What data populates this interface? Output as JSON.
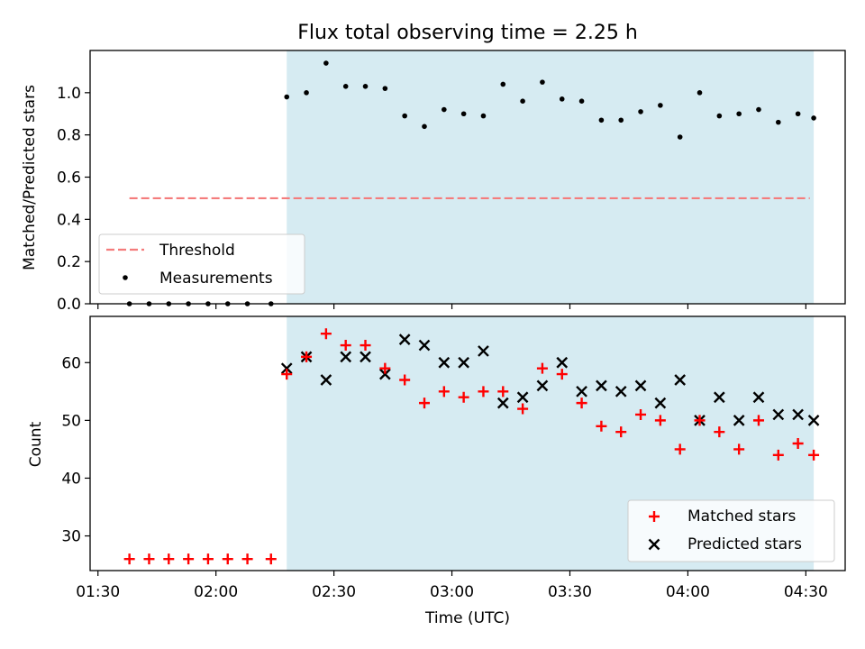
{
  "title": "Flux total observing time = 2.25 h",
  "colors": {
    "shade": "#add8e6",
    "threshold": "#f47c7c",
    "measurement": "#000000",
    "matched": "#ff0000",
    "predicted": "#000000"
  },
  "chart_data": [
    {
      "type": "scatter",
      "ylabel": "Matched/Predicted stars",
      "ylim": [
        0,
        1.2
      ],
      "yticks": [
        0.0,
        0.2,
        0.4,
        0.6,
        0.8,
        1.0
      ],
      "ytick_labels": [
        "0.0",
        "0.2",
        "0.4",
        "0.6",
        "0.8",
        "1.0"
      ],
      "xlim": [
        "01:28",
        "04:40"
      ],
      "shaded_span": [
        "02:18",
        "04:32"
      ],
      "legend": {
        "position": "lower-left",
        "entries": [
          "Threshold",
          "Measurements"
        ]
      },
      "threshold": {
        "name": "Threshold",
        "value": 0.5,
        "x_range": [
          "01:38",
          "04:31"
        ]
      },
      "series": [
        {
          "name": "Measurements",
          "marker": "dot",
          "points": [
            [
              "01:38",
              0
            ],
            [
              "01:43",
              0
            ],
            [
              "01:48",
              0
            ],
            [
              "01:53",
              0
            ],
            [
              "01:58",
              0
            ],
            [
              "02:03",
              0
            ],
            [
              "02:08",
              0
            ],
            [
              "02:14",
              0
            ],
            [
              "02:18",
              0.98
            ],
            [
              "02:23",
              1.0
            ],
            [
              "02:28",
              1.14
            ],
            [
              "02:33",
              1.03
            ],
            [
              "02:38",
              1.03
            ],
            [
              "02:43",
              1.02
            ],
            [
              "02:48",
              0.89
            ],
            [
              "02:53",
              0.84
            ],
            [
              "02:58",
              0.92
            ],
            [
              "03:03",
              0.9
            ],
            [
              "03:08",
              0.89
            ],
            [
              "03:13",
              1.04
            ],
            [
              "03:18",
              0.96
            ],
            [
              "03:23",
              1.05
            ],
            [
              "03:28",
              0.97
            ],
            [
              "03:33",
              0.96
            ],
            [
              "03:38",
              0.87
            ],
            [
              "03:43",
              0.87
            ],
            [
              "03:48",
              0.91
            ],
            [
              "03:53",
              0.94
            ],
            [
              "03:58",
              0.79
            ],
            [
              "04:03",
              1.0
            ],
            [
              "04:08",
              0.89
            ],
            [
              "04:13",
              0.9
            ],
            [
              "04:18",
              0.92
            ],
            [
              "04:23",
              0.86
            ],
            [
              "04:28",
              0.9
            ],
            [
              "04:32",
              0.88
            ]
          ]
        }
      ]
    },
    {
      "type": "scatter",
      "xlabel": "Time (UTC)",
      "ylabel": "Count",
      "ylim": [
        24,
        68
      ],
      "yticks": [
        30,
        40,
        50,
        60
      ],
      "ytick_labels": [
        "30",
        "40",
        "50",
        "60"
      ],
      "xlim": [
        "01:28",
        "04:40"
      ],
      "xticks": [
        "01:30",
        "02:00",
        "02:30",
        "03:00",
        "03:30",
        "04:00",
        "04:30"
      ],
      "xtick_labels": [
        "01:30",
        "02:00",
        "02:30",
        "03:00",
        "03:30",
        "04:00",
        "04:30"
      ],
      "shaded_span": [
        "02:18",
        "04:32"
      ],
      "legend": {
        "position": "lower-right",
        "entries": [
          "Matched stars",
          "Predicted stars"
        ]
      },
      "series": [
        {
          "name": "Matched stars",
          "marker": "plus",
          "points": [
            [
              "01:38",
              26
            ],
            [
              "01:43",
              26
            ],
            [
              "01:48",
              26
            ],
            [
              "01:53",
              26
            ],
            [
              "01:58",
              26
            ],
            [
              "02:03",
              26
            ],
            [
              "02:08",
              26
            ],
            [
              "02:14",
              26
            ],
            [
              "02:18",
              58
            ],
            [
              "02:23",
              61
            ],
            [
              "02:28",
              65
            ],
            [
              "02:33",
              63
            ],
            [
              "02:38",
              63
            ],
            [
              "02:43",
              59
            ],
            [
              "02:48",
              57
            ],
            [
              "02:53",
              53
            ],
            [
              "02:58",
              55
            ],
            [
              "03:03",
              54
            ],
            [
              "03:08",
              55
            ],
            [
              "03:13",
              55
            ],
            [
              "03:18",
              52
            ],
            [
              "03:23",
              59
            ],
            [
              "03:28",
              58
            ],
            [
              "03:33",
              53
            ],
            [
              "03:38",
              49
            ],
            [
              "03:43",
              48
            ],
            [
              "03:48",
              51
            ],
            [
              "03:53",
              50
            ],
            [
              "03:58",
              45
            ],
            [
              "04:03",
              50
            ],
            [
              "04:08",
              48
            ],
            [
              "04:13",
              45
            ],
            [
              "04:18",
              50
            ],
            [
              "04:23",
              44
            ],
            [
              "04:28",
              46
            ],
            [
              "04:32",
              44
            ]
          ]
        },
        {
          "name": "Predicted stars",
          "marker": "x",
          "points": [
            [
              "02:18",
              59
            ],
            [
              "02:23",
              61
            ],
            [
              "02:28",
              57
            ],
            [
              "02:33",
              61
            ],
            [
              "02:38",
              61
            ],
            [
              "02:43",
              58
            ],
            [
              "02:48",
              64
            ],
            [
              "02:53",
              63
            ],
            [
              "02:58",
              60
            ],
            [
              "03:03",
              60
            ],
            [
              "03:08",
              62
            ],
            [
              "03:13",
              53
            ],
            [
              "03:18",
              54
            ],
            [
              "03:23",
              56
            ],
            [
              "03:28",
              60
            ],
            [
              "03:33",
              55
            ],
            [
              "03:38",
              56
            ],
            [
              "03:43",
              55
            ],
            [
              "03:48",
              56
            ],
            [
              "03:53",
              53
            ],
            [
              "03:58",
              57
            ],
            [
              "04:03",
              50
            ],
            [
              "04:08",
              54
            ],
            [
              "04:13",
              50
            ],
            [
              "04:18",
              54
            ],
            [
              "04:23",
              51
            ],
            [
              "04:28",
              51
            ],
            [
              "04:32",
              50
            ]
          ]
        }
      ]
    }
  ]
}
